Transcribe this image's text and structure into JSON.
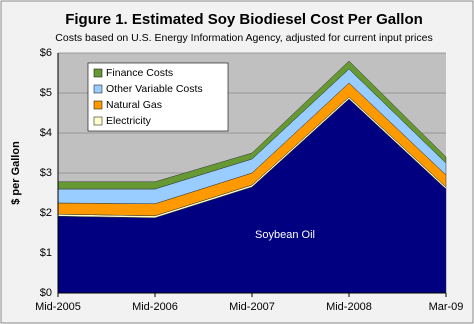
{
  "chart_data": {
    "type": "stacked_area",
    "title": "Figure 1. Estimated Soy Biodiesel Cost Per Gallon",
    "subtitle": "Costs based on U.S. Energy Information Agency, adjusted for current input prices",
    "y_label": "$ per Gallon",
    "categories": [
      "Mid-2005",
      "Mid-2006",
      "Mid-2007",
      "Mid-2008",
      "Mar-09"
    ],
    "series": [
      {
        "name": "Soybean Oil",
        "color": "#000080",
        "label_inside": true,
        "values": [
          1.92,
          1.88,
          2.65,
          4.85,
          2.6
        ]
      },
      {
        "name": "Electricity",
        "color": "#ffffcc",
        "values": [
          0.05,
          0.05,
          0.05,
          0.05,
          0.05
        ]
      },
      {
        "name": "Natural Gas",
        "color": "#ff9900",
        "values": [
          0.28,
          0.3,
          0.3,
          0.35,
          0.3
        ]
      },
      {
        "name": "Other Variable Costs",
        "color": "#99ccff",
        "values": [
          0.35,
          0.37,
          0.35,
          0.35,
          0.3
        ]
      },
      {
        "name": "Finance Costs",
        "color": "#669933",
        "values": [
          0.18,
          0.18,
          0.15,
          0.2,
          0.15
        ]
      }
    ],
    "ylim": [
      0,
      6
    ],
    "yticks": [
      {
        "value": 0,
        "label": "$0"
      },
      {
        "value": 1,
        "label": "$1"
      },
      {
        "value": 2,
        "label": "$2"
      },
      {
        "value": 3,
        "label": "$3"
      },
      {
        "value": 4,
        "label": "$4"
      },
      {
        "value": 5,
        "label": "$5"
      },
      {
        "value": 6,
        "label": "$6"
      }
    ],
    "grid": true
  }
}
